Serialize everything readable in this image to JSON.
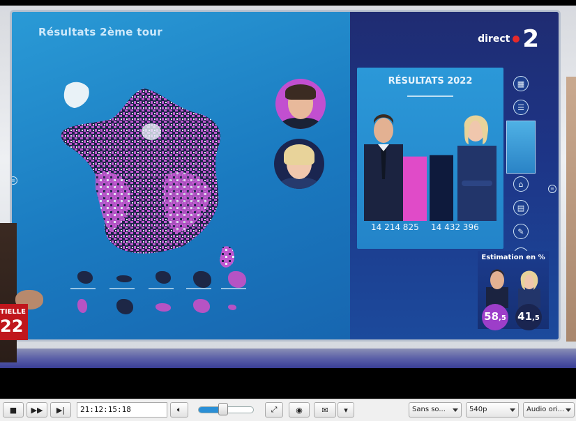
{
  "broadcast": {
    "panel_title": "Résultats 2ème tour",
    "channel_word": "direct",
    "channel_number": "2",
    "results_title": "RÉSULTATS 2022",
    "votes": [
      {
        "value": "14 214 825",
        "bar_fraction": 0.44,
        "color": "#e04bc8"
      },
      {
        "value": "14 432 396",
        "bar_fraction": 0.45,
        "color": "#0e1a3c"
      }
    ],
    "estimation_title": "Estimation en %",
    "estimation": [
      {
        "int": "58",
        "dec": ",5",
        "color": "#9d3ec9"
      },
      {
        "int": "41",
        "dec": ",5",
        "color": "#1a2550"
      }
    ],
    "lower_third_small": "TIELLE",
    "lower_third_big": "22",
    "map_colors": {
      "dark": "#1c2548",
      "pink": "#bf57cf",
      "light": "#e9f2f7"
    }
  },
  "player": {
    "time": "21:12:15:18",
    "volume_level": 0.45,
    "subtitles": "Sans so...",
    "quality": "540p",
    "audio": "Audio ori..."
  }
}
